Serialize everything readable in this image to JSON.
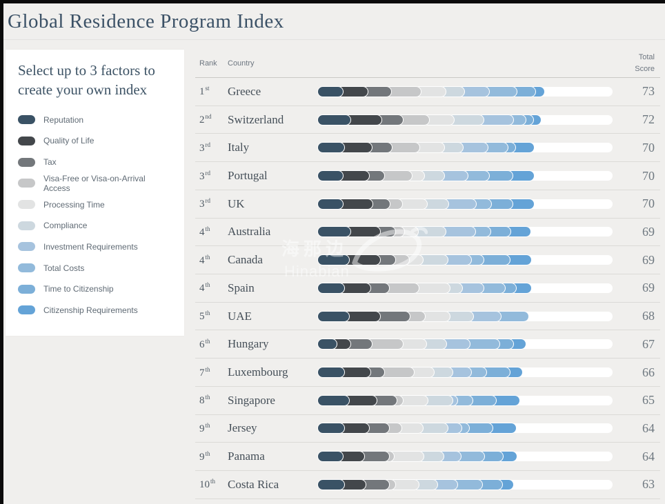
{
  "title": "Global Residence Program Index",
  "sidebar": {
    "heading": "Select up to 3 factors to create your own index"
  },
  "table": {
    "headers": {
      "rank": "Rank",
      "country": "Country",
      "total_score": "Total Score"
    }
  },
  "watermark": {
    "line1": "海那边",
    "line2": "Hinabian"
  },
  "colors": {
    "page_background": "#f0efed",
    "card_background": "#ffffff",
    "title_text": "#3b5166",
    "bar_track": "#ffffff",
    "row_divider": "#dbdad7"
  },
  "chart_data": {
    "type": "bar",
    "subtype": "horizontal-stacked",
    "scale_max": 95,
    "legend_position": "left-sidebar",
    "factors": [
      {
        "name": "Reputation",
        "color": "#3a5265"
      },
      {
        "name": "Quality of Life",
        "color": "#43474b"
      },
      {
        "name": "Tax",
        "color": "#73777b"
      },
      {
        "name": "Visa-Free or Visa-on-Arrival Access",
        "color": "#c6c7c8"
      },
      {
        "name": "Processing Time",
        "color": "#e2e3e3"
      },
      {
        "name": "Compliance",
        "color": "#cdd8df"
      },
      {
        "name": "Investment Requirements",
        "color": "#a6c3de"
      },
      {
        "name": "Total Costs",
        "color": "#92badb"
      },
      {
        "name": "Time to Citizenship",
        "color": "#7cafd8"
      },
      {
        "name": "Citizenship Requirements",
        "color": "#64a3d7"
      }
    ],
    "rows": [
      {
        "rank": "1",
        "ordinal": "st",
        "country": "Greece",
        "total": 73,
        "values": [
          8,
          8,
          7.5,
          9.5,
          8,
          6,
          8,
          9,
          6,
          3
        ]
      },
      {
        "rank": "2",
        "ordinal": "nd",
        "country": "Switzerland",
        "total": 72,
        "values": [
          10.5,
          10,
          7,
          8.5,
          8,
          9.5,
          9.5,
          4,
          2.5,
          2.5
        ]
      },
      {
        "rank": "3",
        "ordinal": "rd",
        "country": "Italy",
        "total": 70,
        "values": [
          8.5,
          9,
          6.5,
          9,
          8,
          6,
          8,
          6.5,
          2.5,
          6
        ]
      },
      {
        "rank": "3",
        "ordinal": "rd",
        "country": "Portugal",
        "total": 70,
        "values": [
          8,
          8.5,
          5,
          9,
          4,
          6.5,
          7.5,
          7,
          7.5,
          7
        ]
      },
      {
        "rank": "3",
        "ordinal": "rd",
        "country": "UK",
        "total": 70,
        "values": [
          8,
          9.5,
          5.5,
          4,
          8,
          7,
          9,
          5,
          7,
          7
        ]
      },
      {
        "rank": "4",
        "ordinal": "th",
        "country": "Australia",
        "total": 69,
        "values": [
          10.5,
          9.5,
          5,
          3,
          4.5,
          9,
          9.5,
          5,
          6.5,
          6.5
        ]
      },
      {
        "rank": "4",
        "ordinal": "th",
        "country": "Canada",
        "total": 69,
        "values": [
          10,
          10,
          5,
          4.5,
          4.5,
          8,
          7.5,
          4,
          8.5,
          7
        ]
      },
      {
        "rank": "4",
        "ordinal": "th",
        "country": "Spain",
        "total": 69,
        "values": [
          8.5,
          8.5,
          6,
          9.5,
          10,
          4,
          7,
          7,
          3.5,
          5
        ]
      },
      {
        "rank": "5",
        "ordinal": "th",
        "country": "UAE",
        "total": 68,
        "values": [
          10,
          10,
          9.5,
          5,
          8,
          7.5,
          9,
          9,
          0,
          0
        ]
      },
      {
        "rank": "6",
        "ordinal": "th",
        "country": "Hungary",
        "total": 67,
        "values": [
          6,
          4.5,
          7,
          10,
          7.5,
          6.5,
          7.5,
          9.5,
          4.5,
          4
        ]
      },
      {
        "rank": "7",
        "ordinal": "th",
        "country": "Luxembourg",
        "total": 66,
        "values": [
          8.5,
          8.5,
          4.5,
          9.5,
          6.5,
          6,
          6,
          5,
          7.5,
          4
        ]
      },
      {
        "rank": "8",
        "ordinal": "th",
        "country": "Singapore",
        "total": 65,
        "values": [
          10,
          9,
          6.5,
          2,
          8,
          8,
          1.5,
          5,
          7.5,
          7.5
        ]
      },
      {
        "rank": "9",
        "ordinal": "th",
        "country": "Jersey",
        "total": 64,
        "values": [
          8.5,
          8,
          6.5,
          4,
          7,
          8,
          4.5,
          2.5,
          7.5,
          7.5
        ]
      },
      {
        "rank": "9",
        "ordinal": "th",
        "country": "Panama",
        "total": 64,
        "values": [
          8,
          7,
          8,
          1.5,
          9.5,
          6.5,
          5.5,
          7.5,
          6,
          4.5
        ]
      },
      {
        "rank": "10",
        "ordinal": "th",
        "country": "Costa Rica",
        "total": 63,
        "values": [
          8.5,
          7,
          7.5,
          2,
          7.5,
          6,
          6.5,
          8,
          6.5,
          3.5
        ]
      }
    ]
  }
}
